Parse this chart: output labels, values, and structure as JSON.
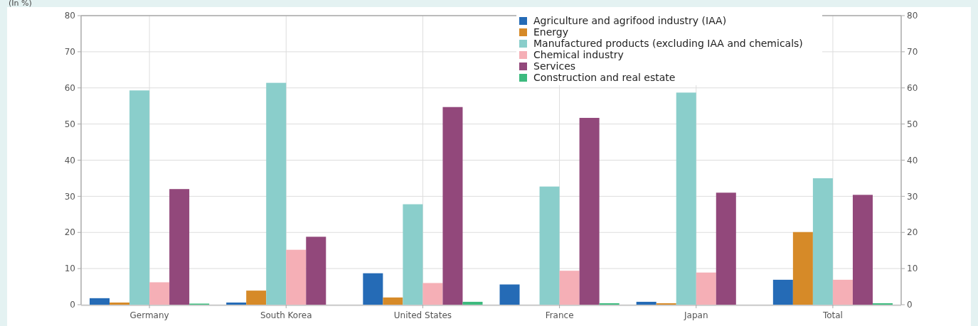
{
  "chart_data": {
    "type": "bar",
    "ylabel": "(In %)",
    "categories": [
      "Germany",
      "South Korea",
      "United States",
      "France",
      "Japan",
      "Total"
    ],
    "series": [
      {
        "name": "Agriculture and agrifood industry (IAA)",
        "color": "#256bb6",
        "values": [
          1.8,
          0.6,
          8.7,
          5.6,
          0.8,
          6.9
        ]
      },
      {
        "name": "Energy",
        "color": "#d68a28",
        "values": [
          0.6,
          3.9,
          2.0,
          0,
          0.4,
          20.1
        ]
      },
      {
        "name": "Manufactured products (excluding IAA and chemicals)",
        "color": "#8acecb",
        "values": [
          59.3,
          61.4,
          27.8,
          32.7,
          58.7,
          35.0
        ]
      },
      {
        "name": "Chemical industry",
        "color": "#f5afb6",
        "values": [
          6.2,
          15.2,
          6.0,
          9.4,
          8.9,
          6.9
        ]
      },
      {
        "name": "Services",
        "color": "#92487b",
        "values": [
          32.0,
          18.8,
          54.7,
          51.7,
          31.0,
          30.4
        ]
      },
      {
        "name": "Construction and real estate",
        "color": "#3dba7e",
        "values": [
          0.3,
          0,
          0.8,
          0.4,
          0,
          0.4
        ]
      }
    ],
    "ylim": [
      0,
      80
    ],
    "yticks": [
      0,
      10,
      20,
      30,
      40,
      50,
      60,
      70,
      80
    ],
    "y2lim": [
      0,
      80
    ],
    "y2ticks": [
      0,
      10,
      20,
      30,
      40,
      50,
      60,
      70,
      80
    ],
    "grid": true,
    "legend": "top right"
  }
}
